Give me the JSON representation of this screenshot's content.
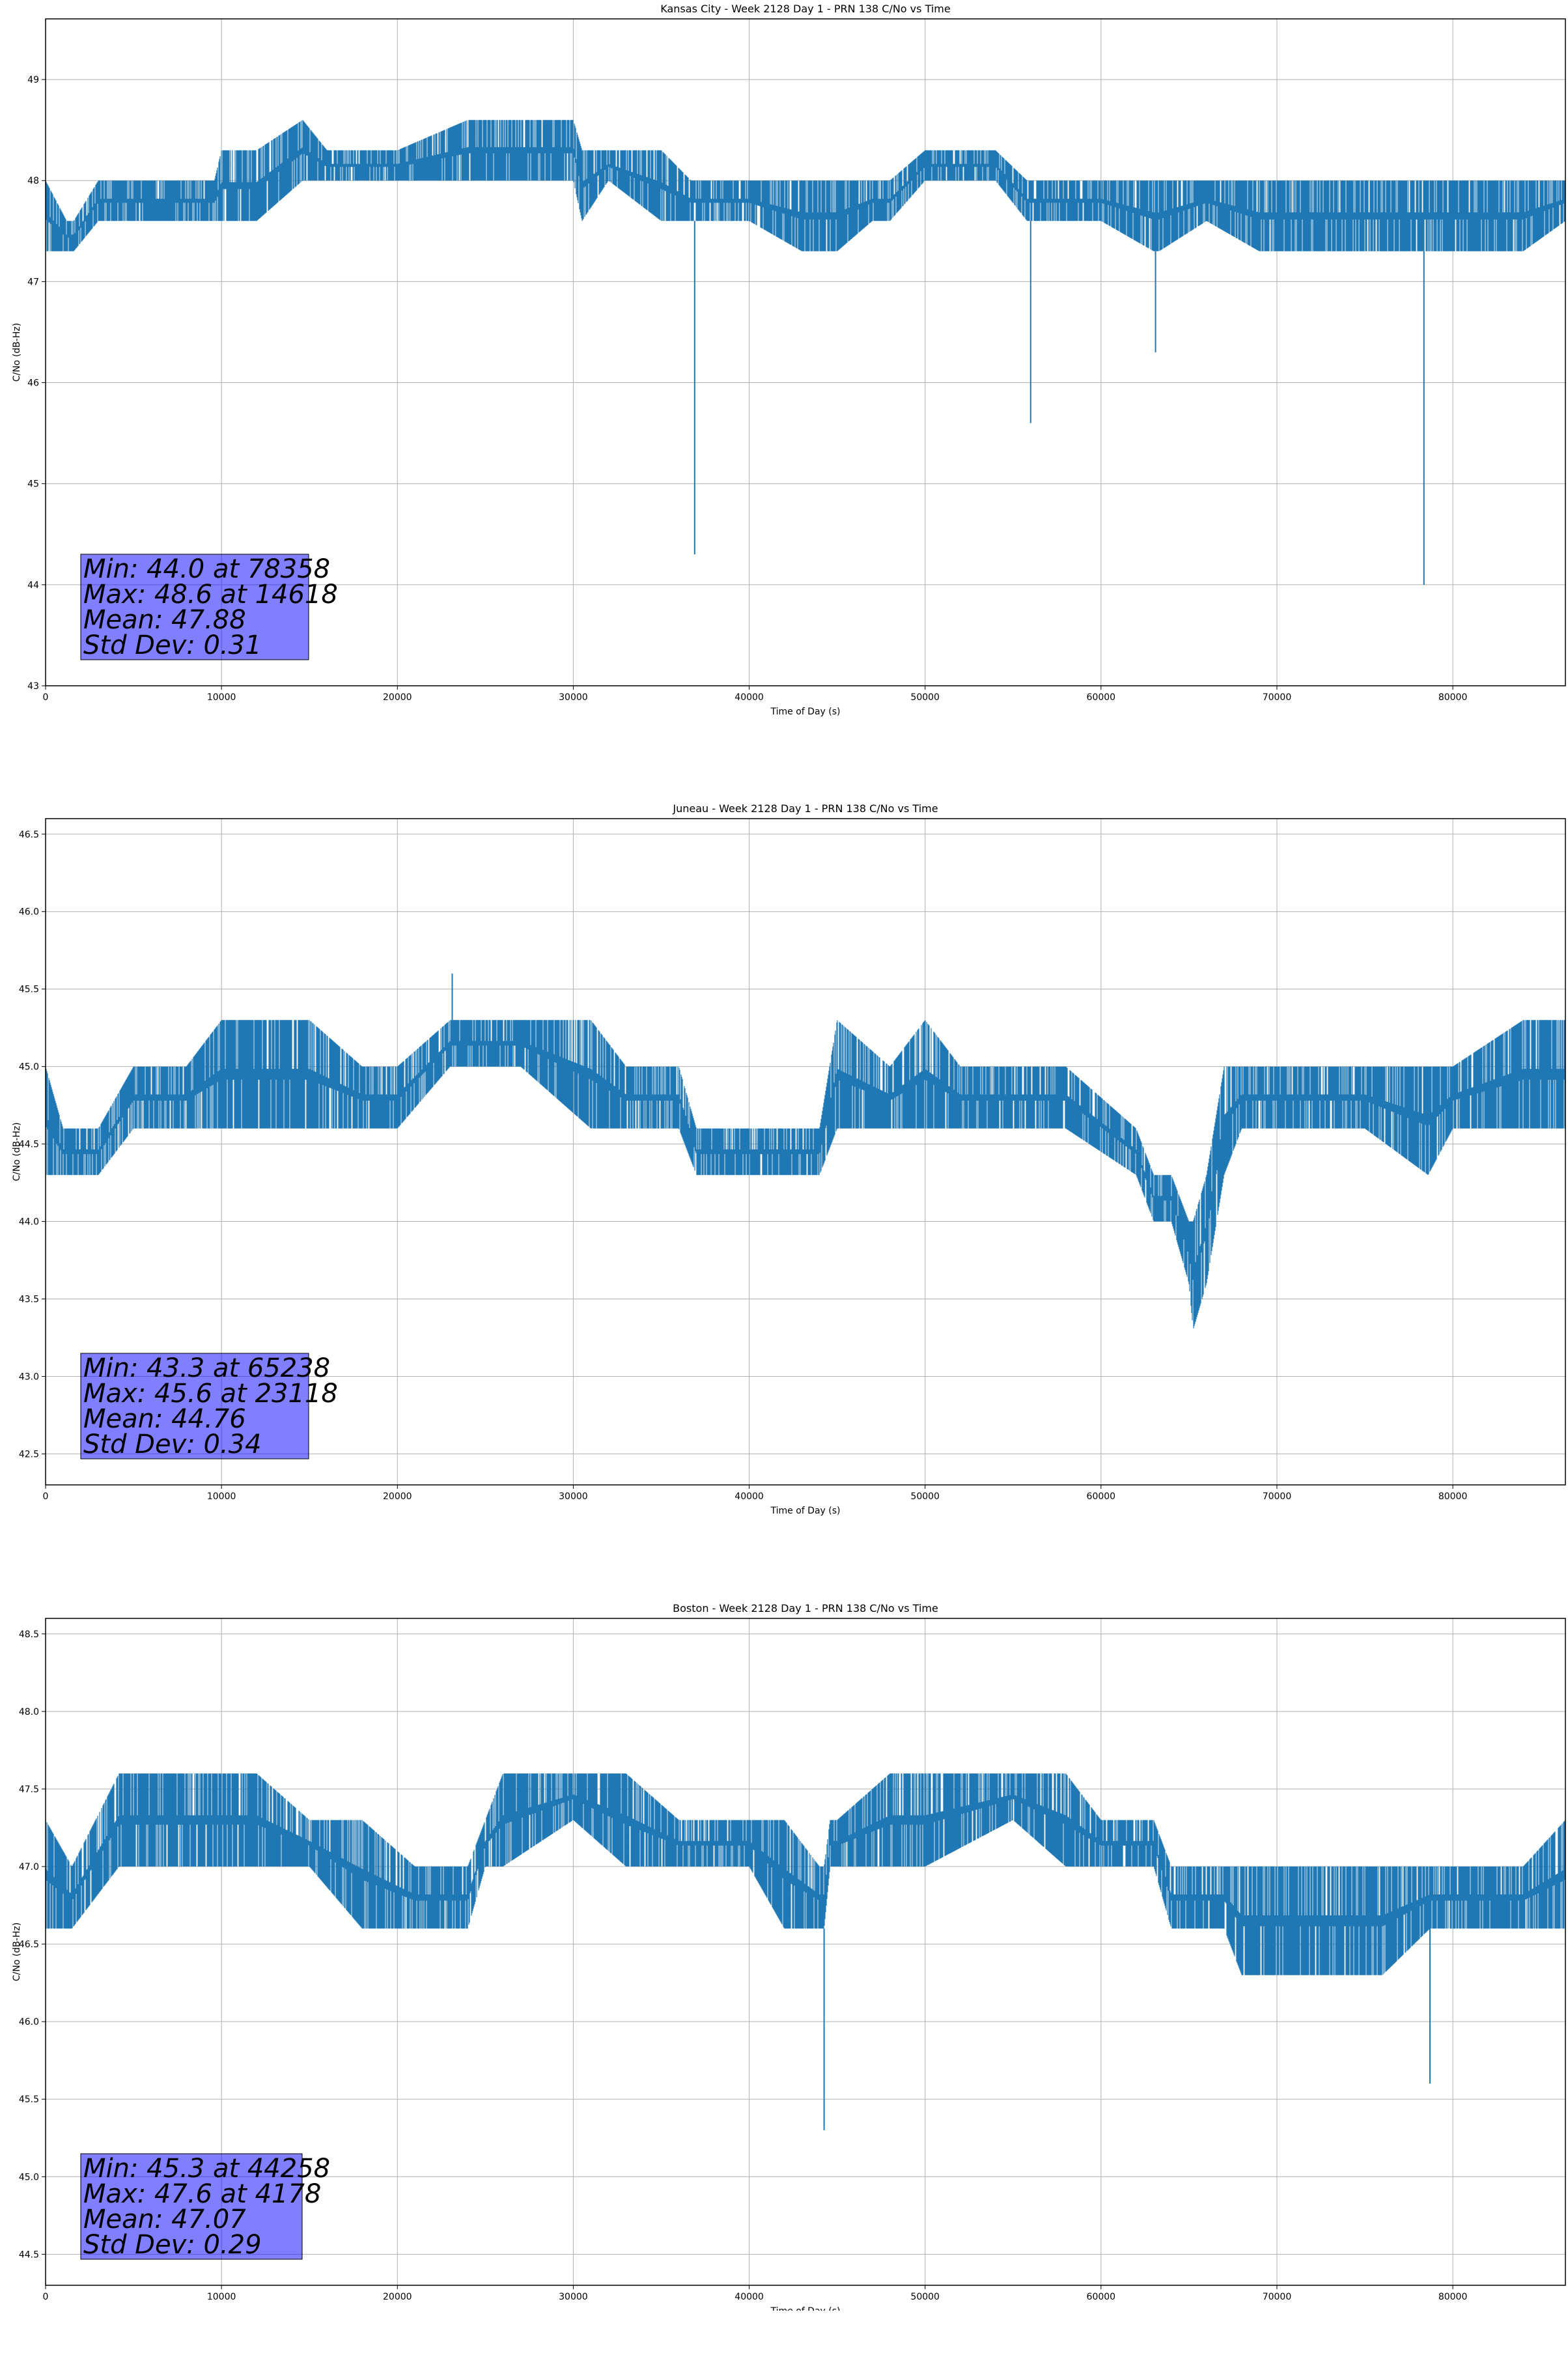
{
  "chart_data": [
    {
      "type": "line",
      "title": "Kansas City - Week 2128 Day 1 - PRN 138 C/No vs Time",
      "xlabel": "Time of Day (s)",
      "ylabel": "C/No (dB-Hz)",
      "xlim": [
        0,
        86400
      ],
      "ylim": [
        43,
        49.6
      ],
      "xticks": [
        0,
        10000,
        20000,
        30000,
        40000,
        50000,
        60000,
        70000,
        80000
      ],
      "yticks": [
        43,
        44,
        45,
        46,
        47,
        48,
        49
      ],
      "ytick_labels": [
        "43",
        "44",
        "45",
        "46",
        "47",
        "48",
        "49"
      ],
      "grid": true,
      "color": "#1f77b4",
      "series": [
        {
          "x": [
            0,
            1200,
            1600,
            3000,
            5000,
            8000,
            9600,
            10000,
            12000,
            14618,
            16000,
            20000,
            24000,
            27000,
            30000,
            30500,
            32000,
            35000,
            36700,
            36900,
            37200,
            40000,
            43000,
            45000,
            47000,
            48000,
            50000,
            52000,
            54000,
            55800,
            56000,
            56200,
            58000,
            60000,
            63000,
            63100,
            63300,
            66000,
            69000,
            70000,
            73000,
            76000,
            78000,
            78358,
            78800,
            81000,
            84000,
            86400
          ],
          "y": [
            47.9,
            47.6,
            47.5,
            47.8,
            47.8,
            47.8,
            47.9,
            48.1,
            48.1,
            48.2,
            48.1,
            48.1,
            48.2,
            48.3,
            48.3,
            48.1,
            48.1,
            48.0,
            47.8,
            44.3,
            47.8,
            47.9,
            47.6,
            47.5,
            47.9,
            47.9,
            48.1,
            48.1,
            48.0,
            47.8,
            45.6,
            47.8,
            47.8,
            47.8,
            47.6,
            46.3,
            47.6,
            47.8,
            47.6,
            47.6,
            47.5,
            47.6,
            47.6,
            44.0,
            47.7,
            47.7,
            47.6,
            47.7
          ],
          "fill_low": [
            47.3,
            47.3,
            47.3,
            47.6,
            47.6,
            47.6,
            47.6,
            47.6,
            47.6,
            48.0,
            48.0,
            48.0,
            48.0,
            48.0,
            48.0,
            47.6,
            48.0,
            47.6,
            47.6,
            47.6,
            47.6,
            47.6,
            47.3,
            47.3,
            47.6,
            47.6,
            48.0,
            48.0,
            48.0,
            47.6,
            47.6,
            47.6,
            47.6,
            47.6,
            47.3,
            47.3,
            47.3,
            47.6,
            47.3,
            47.3,
            47.3,
            47.3,
            47.3,
            47.3,
            47.3,
            47.3,
            47.3,
            47.6
          ],
          "fill_high": [
            48.0,
            47.6,
            47.6,
            48.0,
            48.0,
            48.0,
            48.0,
            48.3,
            48.3,
            48.6,
            48.3,
            48.3,
            48.6,
            48.6,
            48.6,
            48.3,
            48.3,
            48.3,
            48.0,
            48.0,
            48.0,
            48.0,
            48.0,
            48.0,
            48.0,
            48.0,
            48.3,
            48.3,
            48.3,
            48.0,
            48.0,
            48.0,
            48.0,
            48.0,
            48.0,
            48.0,
            48.0,
            48.0,
            48.0,
            48.0,
            48.0,
            48.0,
            48.0,
            48.0,
            48.0,
            48.0,
            48.0,
            48.0
          ]
        }
      ],
      "stats": [
        "Min: 44.0 at 78358",
        "Max: 48.6 at 14618",
        "Mean: 47.88",
        "Std Dev: 0.31"
      ]
    },
    {
      "type": "line",
      "title": "Juneau - Week 2128 Day 1 - PRN 138 C/No vs Time",
      "xlabel": "Time of Day (s)",
      "ylabel": "C/No (dB-Hz)",
      "xlim": [
        0,
        86400
      ],
      "ylim": [
        42.3,
        46.6
      ],
      "xticks": [
        0,
        10000,
        20000,
        30000,
        40000,
        50000,
        60000,
        70000,
        80000
      ],
      "yticks": [
        42.5,
        43.0,
        43.5,
        44.0,
        44.5,
        45.0,
        45.5,
        46.0,
        46.5
      ],
      "ytick_labels": [
        "42.5",
        "43.0",
        "43.5",
        "44.0",
        "44.5",
        "45.0",
        "45.5",
        "46.0",
        "46.5"
      ],
      "grid": true,
      "color": "#1f77b4",
      "series": [
        {
          "x": [
            0,
            1000,
            3000,
            5000,
            8000,
            10000,
            15000,
            18000,
            20000,
            23000,
            23118,
            25000,
            27000,
            31000,
            33000,
            36000,
            37000,
            40000,
            42000,
            44000,
            45000,
            48000,
            50000,
            52000,
            55000,
            58000,
            62000,
            63000,
            64000,
            65000,
            65238,
            66000,
            67000,
            68000,
            70000,
            75000,
            78600,
            80000,
            84000,
            86400
          ],
          "y": [
            44.6,
            44.5,
            44.5,
            44.8,
            44.8,
            44.9,
            44.9,
            44.8,
            44.7,
            45.0,
            45.6,
            45.1,
            45.2,
            45.1,
            44.9,
            44.8,
            44.5,
            44.4,
            44.4,
            44.4,
            44.8,
            44.8,
            44.9,
            44.8,
            44.8,
            44.7,
            44.6,
            44.3,
            44.2,
            43.6,
            43.3,
            43.8,
            44.6,
            44.8,
            44.8,
            44.8,
            44.6,
            44.8,
            44.8,
            44.8
          ],
          "fill_low": [
            44.3,
            44.3,
            44.3,
            44.6,
            44.6,
            44.6,
            44.6,
            44.6,
            44.6,
            45.0,
            45.0,
            45.0,
            45.0,
            44.6,
            44.6,
            44.6,
            44.3,
            44.3,
            44.3,
            44.3,
            44.6,
            44.6,
            44.6,
            44.6,
            44.6,
            44.6,
            44.3,
            44.0,
            44.0,
            43.6,
            43.3,
            43.6,
            44.3,
            44.6,
            44.6,
            44.6,
            44.3,
            44.6,
            44.6,
            44.6
          ],
          "fill_high": [
            45.0,
            44.6,
            44.6,
            45.0,
            45.0,
            45.3,
            45.3,
            45.0,
            45.0,
            45.3,
            45.3,
            45.3,
            45.3,
            45.3,
            45.0,
            45.0,
            44.6,
            44.6,
            44.6,
            44.6,
            45.3,
            45.0,
            45.3,
            45.0,
            45.0,
            45.0,
            44.6,
            44.3,
            44.3,
            44.0,
            44.0,
            44.3,
            45.0,
            45.0,
            45.0,
            45.0,
            45.0,
            45.0,
            45.3,
            45.3
          ]
        }
      ],
      "stats": [
        "Min: 43.3 at 65238",
        "Max: 45.6 at 23118",
        "Mean: 44.76",
        "Std Dev: 0.34"
      ]
    },
    {
      "type": "line",
      "title": "Boston - Week 2128 Day 1 - PRN 138 C/No vs Time",
      "xlabel": "Time of Day (s)",
      "ylabel": "C/No (dB-Hz)",
      "xlim": [
        0,
        86400
      ],
      "ylim": [
        44.3,
        48.6
      ],
      "xticks": [
        0,
        10000,
        20000,
        30000,
        40000,
        50000,
        60000,
        70000,
        80000
      ],
      "yticks": [
        44.5,
        45.0,
        45.5,
        46.0,
        46.5,
        47.0,
        47.5,
        48.0,
        48.5
      ],
      "ytick_labels": [
        "44.5",
        "45.0",
        "45.5",
        "46.0",
        "46.5",
        "47.0",
        "47.5",
        "48.0",
        "48.5"
      ],
      "grid": true,
      "color": "#1f77b4",
      "series": [
        {
          "x": [
            0,
            1500,
            4178,
            8000,
            12000,
            15000,
            18000,
            21000,
            24000,
            25000,
            26000,
            30000,
            33000,
            36000,
            40000,
            42000,
            44000,
            44258,
            44600,
            45000,
            48000,
            50000,
            55000,
            58000,
            60000,
            63000,
            64000,
            67000,
            68000,
            72000,
            76000,
            78700,
            80000,
            84000,
            86400
          ],
          "y": [
            46.9,
            46.8,
            47.3,
            47.2,
            47.2,
            47.2,
            47.0,
            46.9,
            46.9,
            47.2,
            47.3,
            47.4,
            47.3,
            47.2,
            47.2,
            47.0,
            46.7,
            45.3,
            47.0,
            47.2,
            47.2,
            47.3,
            47.4,
            47.3,
            47.2,
            47.1,
            46.9,
            46.8,
            46.6,
            46.6,
            46.6,
            45.6,
            46.8,
            46.8,
            46.9
          ],
          "fill_low": [
            46.6,
            46.6,
            47.0,
            47.0,
            47.0,
            47.0,
            46.6,
            46.6,
            46.6,
            47.0,
            47.0,
            47.3,
            47.0,
            47.0,
            47.0,
            46.6,
            46.6,
            46.6,
            47.0,
            47.0,
            47.0,
            47.0,
            47.3,
            47.0,
            47.0,
            47.0,
            46.6,
            46.6,
            46.3,
            46.3,
            46.3,
            46.6,
            46.6,
            46.6,
            46.6
          ],
          "fill_high": [
            47.3,
            47.0,
            47.6,
            47.6,
            47.6,
            47.3,
            47.3,
            47.0,
            47.0,
            47.3,
            47.6,
            47.6,
            47.6,
            47.3,
            47.3,
            47.3,
            47.0,
            47.0,
            47.3,
            47.3,
            47.6,
            47.6,
            47.6,
            47.6,
            47.3,
            47.3,
            47.0,
            47.0,
            47.0,
            47.0,
            47.0,
            47.0,
            47.0,
            47.0,
            47.3
          ]
        }
      ],
      "stats": [
        "Min: 45.3 at 44258",
        "Max: 47.6 at 4178",
        "Mean: 47.07",
        "Std Dev: 0.29"
      ]
    }
  ]
}
